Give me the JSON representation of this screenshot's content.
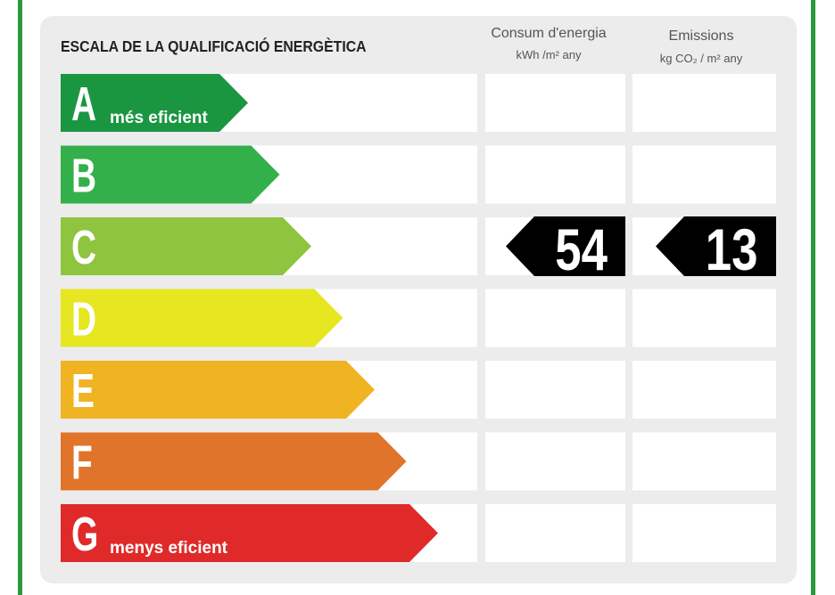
{
  "header": {
    "title": "ESCALA DE LA QUALIFICACIÓ ENERGÈTICA",
    "consumption": {
      "title": "Consum d'energia",
      "unit": "kWh /m² any"
    },
    "emissions": {
      "title": "Emissions",
      "unit": "kg CO₂ / m² any"
    }
  },
  "rows": [
    {
      "letter": "A",
      "label": "més eficient"
    },
    {
      "letter": "B"
    },
    {
      "letter": "C",
      "consumption": 54,
      "emissions": 13
    },
    {
      "letter": "D"
    },
    {
      "letter": "E"
    },
    {
      "letter": "F"
    },
    {
      "letter": "G",
      "label": "menys eficient"
    }
  ]
}
